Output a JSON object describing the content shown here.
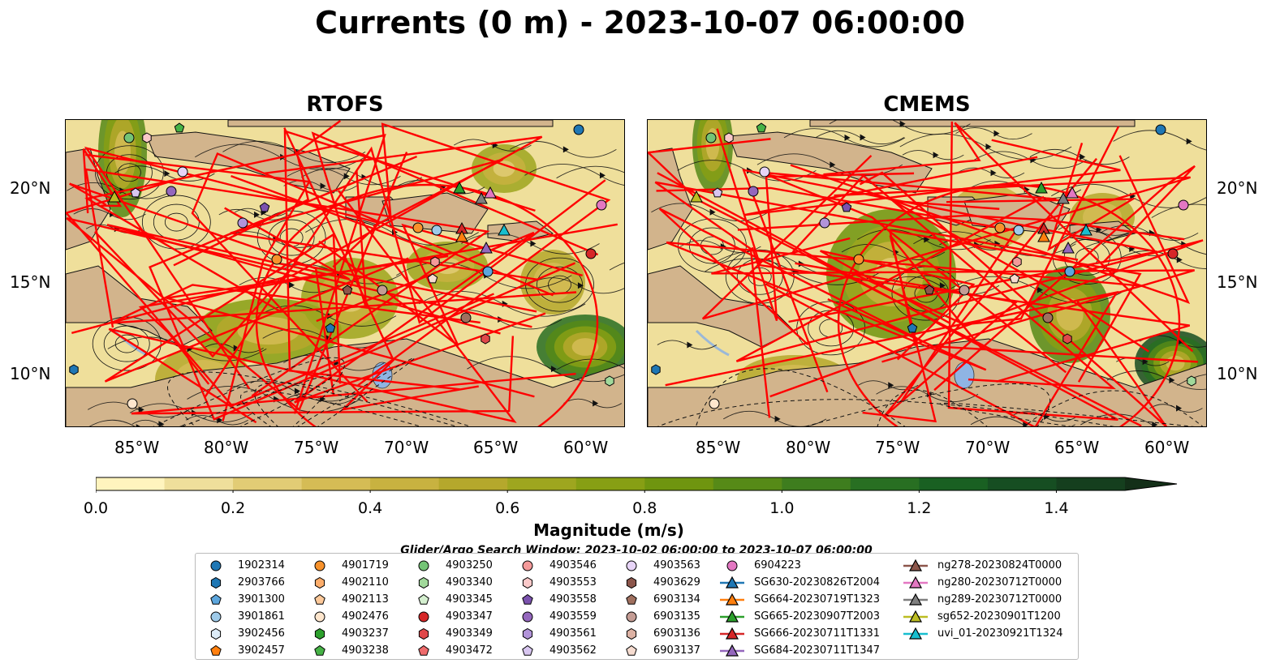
{
  "title": "Currents (0 m) - 2023-10-07 06:00:00",
  "panels": [
    {
      "title": "RTOFS"
    },
    {
      "title": "CMEMS"
    }
  ],
  "map": {
    "lon_ticks": [
      "85°W",
      "80°W",
      "75°W",
      "70°W",
      "65°W",
      "60°W"
    ],
    "lat_ticks": [
      "20°N",
      "15°N",
      "10°N"
    ],
    "colors": {
      "land": "#d2b48c",
      "coast": "#111111",
      "eez": "#ff0000",
      "river": "#9ab8d8",
      "lake": "#8fb4e3"
    }
  },
  "colorbar": {
    "label": "Magnitude (m/s)",
    "ticks": [
      "0.0",
      "0.2",
      "0.4",
      "0.6",
      "0.8",
      "1.0",
      "1.2",
      "1.4"
    ],
    "range": [
      0,
      1.5
    ],
    "extend": "max",
    "colors": [
      "#fff4be",
      "#efdf9b",
      "#e2cc75",
      "#d5bc55",
      "#c8b240",
      "#b5a82c",
      "#9ea61f",
      "#879f14",
      "#6f950f",
      "#568a17",
      "#3e7d1e",
      "#286f22",
      "#196022",
      "#164e22",
      "#153f1e",
      "#132f18"
    ]
  },
  "search_window": "Glider/Argo Search Window: 2023-10-02 06:00:00 to 2023-10-07 06:00:00",
  "legend": {
    "columns": [
      [
        {
          "label": "1902314",
          "marker": "circle",
          "color": "#1f77b4"
        },
        {
          "label": "2903766",
          "marker": "hexagon",
          "color": "#1f77b4"
        },
        {
          "label": "3901300",
          "marker": "pentagon",
          "color": "#5ca6dd"
        },
        {
          "label": "3901861",
          "marker": "circle",
          "color": "#9ecae9"
        },
        {
          "label": "3902456",
          "marker": "hexagon",
          "color": "#dcecf8"
        },
        {
          "label": "3902457",
          "marker": "pentagon",
          "color": "#ff7f0e"
        }
      ],
      [
        {
          "label": "4901719",
          "marker": "circle",
          "color": "#f8922b"
        },
        {
          "label": "4902110",
          "marker": "hexagon",
          "color": "#fdad6b"
        },
        {
          "label": "4902113",
          "marker": "pentagon",
          "color": "#fdc99a"
        },
        {
          "label": "4902476",
          "marker": "circle",
          "color": "#fee6cd"
        },
        {
          "label": "4903237",
          "marker": "hexagon",
          "color": "#2ca02c"
        },
        {
          "label": "4903238",
          "marker": "pentagon",
          "color": "#46b246"
        }
      ],
      [
        {
          "label": "4903250",
          "marker": "circle",
          "color": "#74c476"
        },
        {
          "label": "4903340",
          "marker": "hexagon",
          "color": "#a1d99b"
        },
        {
          "label": "4903345",
          "marker": "pentagon",
          "color": "#d4efcf"
        },
        {
          "label": "4903347",
          "marker": "circle",
          "color": "#d62728"
        },
        {
          "label": "4903349",
          "marker": "hexagon",
          "color": "#e0484a"
        },
        {
          "label": "4903472",
          "marker": "pentagon",
          "color": "#ef6b6c"
        }
      ],
      [
        {
          "label": "4903546",
          "marker": "circle",
          "color": "#f49a9a"
        },
        {
          "label": "4903553",
          "marker": "hexagon",
          "color": "#fac9c9"
        },
        {
          "label": "4903558",
          "marker": "pentagon",
          "color": "#7b52ae"
        },
        {
          "label": "4903559",
          "marker": "circle",
          "color": "#9467bd"
        },
        {
          "label": "4903561",
          "marker": "hexagon",
          "color": "#b294d9"
        },
        {
          "label": "4903562",
          "marker": "pentagon",
          "color": "#d8c6f0"
        }
      ],
      [
        {
          "label": "4903563",
          "marker": "circle",
          "color": "#e7d4f7"
        },
        {
          "label": "4903629",
          "marker": "hexagon",
          "color": "#8c564b"
        },
        {
          "label": "6903134",
          "marker": "pentagon",
          "color": "#a0705f"
        },
        {
          "label": "6903135",
          "marker": "circle",
          "color": "#c49c94"
        },
        {
          "label": "6903136",
          "marker": "hexagon",
          "color": "#ddb2a4"
        },
        {
          "label": "6903137",
          "marker": "pentagon",
          "color": "#f6dcd0"
        }
      ],
      [
        {
          "label": "6904223",
          "marker": "circle",
          "color": "#e377c2"
        },
        {
          "label": "SG630-20230826T2004",
          "marker": "triangle-line",
          "color": "#1f77b4"
        },
        {
          "label": "SG664-20230719T1323",
          "marker": "triangle-line",
          "color": "#ff7f0e"
        },
        {
          "label": "SG665-20230907T2003",
          "marker": "triangle-line",
          "color": "#2ca02c"
        },
        {
          "label": "SG666-20230711T1331",
          "marker": "triangle-line",
          "color": "#d62728"
        },
        {
          "label": "SG684-20230711T1347",
          "marker": "triangle-line",
          "color": "#9467bd"
        }
      ],
      [
        {
          "label": "ng278-20230824T0000",
          "marker": "triangle-line",
          "color": "#8c564b"
        },
        {
          "label": "ng280-20230712T0000",
          "marker": "triangle-line",
          "color": "#e377c2"
        },
        {
          "label": "ng289-20230712T0000",
          "marker": "triangle-line",
          "color": "#7f7f7f"
        },
        {
          "label": "sg652-20230901T1200",
          "marker": "triangle-line",
          "color": "#bcbd22"
        },
        {
          "label": "uvi_01-20230921T1324",
          "marker": "triangle-line",
          "color": "#17becf"
        }
      ]
    ]
  }
}
